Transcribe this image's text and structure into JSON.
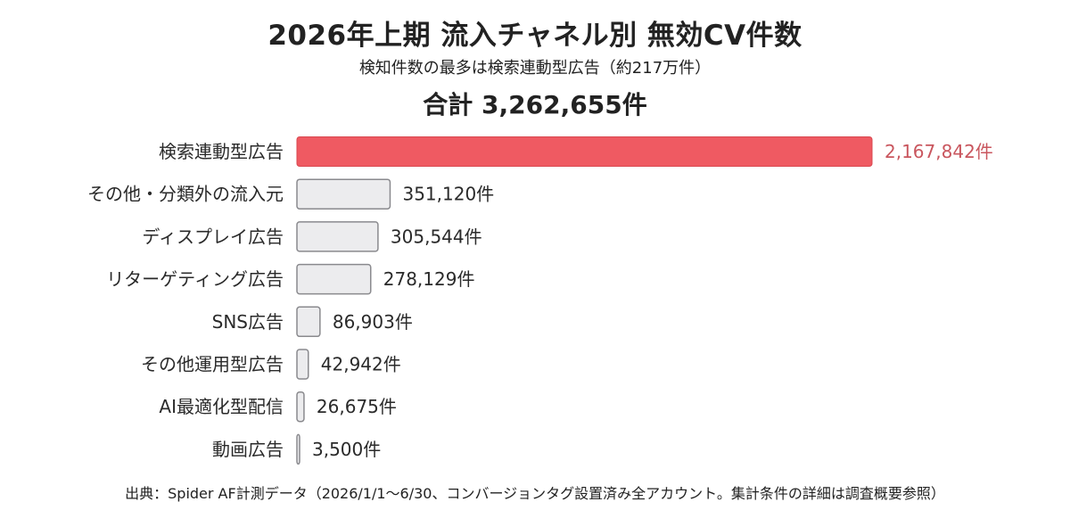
{
  "title": "2026年上期 流入チャネル別 無効CV件数",
  "subtitle": "検知件数の最多は検索連動型広告（約217万件）",
  "total": "合計 3,262,655件",
  "source": "出典：Spider AF計測データ（2026/1/1〜6/30、コンバージョンタグ設置済み全アカウント。集計条件の詳細は調査概要参照）",
  "colors": {
    "highlight_fill": "#ef5a62",
    "highlight_stroke": "#d9474f",
    "highlight_text": "#c9565e",
    "bar_fill": "#ececee",
    "bar_stroke": "#8a8a8e"
  },
  "chart_data": {
    "type": "bar",
    "orientation": "horizontal",
    "categories": [
      "検索連動型広告",
      "その他・分類外の流入元",
      "ディスプレイ広告",
      "リターゲティング広告",
      "SNS広告",
      "その他運用型広告",
      "AI最適化型配信",
      "動画広告"
    ],
    "values": [
      2167842,
      351120,
      305544,
      278129,
      86903,
      42942,
      26675,
      3500
    ],
    "value_labels": [
      "2,167,842件",
      "351,120件",
      "305,544件",
      "278,129件",
      "86,903件",
      "42,942件",
      "26,675件",
      "3,500件"
    ],
    "highlight_index": 0,
    "xlim": [
      0,
      2167842
    ],
    "grid": false,
    "legend": "none"
  }
}
